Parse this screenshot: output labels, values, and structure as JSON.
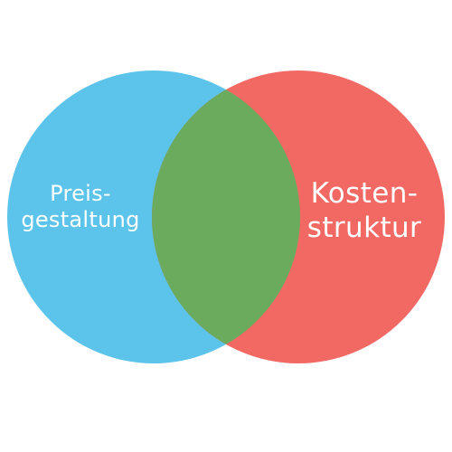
{
  "sets": [
    {
      "lines": [
        "Preis-",
        "gestaltung"
      ],
      "color": "#5cc3ea"
    },
    {
      "lines": [
        "Kosten-",
        "struktur"
      ],
      "color": "#f26964"
    }
  ],
  "overlap": {
    "color": "#6aab5e"
  }
}
